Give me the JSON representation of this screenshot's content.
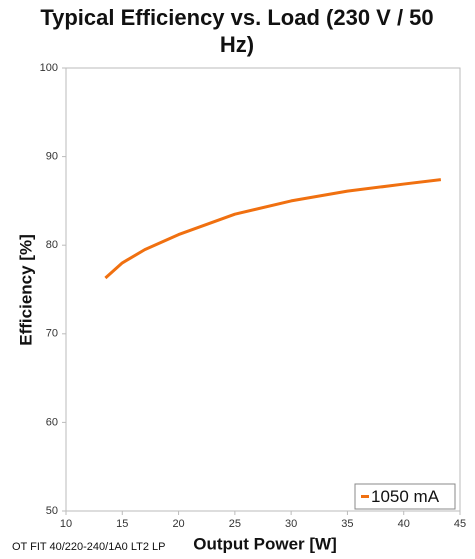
{
  "chart_data": {
    "type": "line",
    "title": "Typical Efficiency vs. Load (230 V / 50 Hz)",
    "x_label": "Output Power [W]",
    "y_label": "Efficiency [%]",
    "note": "OT FIT 40/220-240/1A0 LT2 LP",
    "x": [
      13.5,
      15,
      17,
      20,
      25,
      30,
      35,
      40,
      43.3
    ],
    "series": [
      {
        "name": "1050 mA",
        "color": "#f07010",
        "values": [
          76.3,
          78.0,
          79.5,
          81.2,
          83.5,
          85.0,
          86.1,
          86.9,
          87.4
        ]
      }
    ],
    "xlim": [
      10,
      45
    ],
    "xticks": [
      10,
      15,
      20,
      25,
      30,
      35,
      40,
      45
    ],
    "ylim": [
      50,
      100
    ],
    "yticks": [
      50,
      60,
      70,
      80,
      90,
      100
    ],
    "grid": false,
    "legend": "lower right"
  }
}
